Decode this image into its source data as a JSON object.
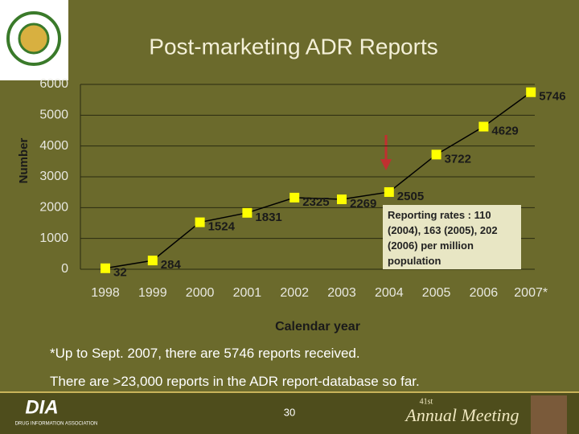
{
  "chart_data": {
    "type": "line",
    "title": "Post-marketing ADR Reports",
    "categories": [
      "1998",
      "1999",
      "2000",
      "2001",
      "2002",
      "2003",
      "2004",
      "2005",
      "2006",
      "2007*"
    ],
    "values": [
      32,
      284,
      1524,
      1831,
      2325,
      2269,
      2505,
      3722,
      4629,
      5746
    ],
    "line_color": "#000000",
    "marker_color": "#ffff00",
    "ylim": [
      0,
      6000
    ],
    "yticks": [
      0,
      1000,
      2000,
      3000,
      4000,
      5000,
      6000
    ],
    "grid": true,
    "xlabel": "Calendar year",
    "ylabel": "Number",
    "annotation": "Reporting rates : 110 (2004), 163 (2005), 202 (2006) per million population"
  },
  "footnotes": [
    "*Up to Sept. 2007, there are 5746 reports received.",
    "There are >23,000 reports in the ADR report-database so far."
  ],
  "footer": {
    "logo_text": "DIA",
    "logo_subtext": "DRUG INFORMATION ASSOCIATION",
    "page_number": "30",
    "meeting_edition": "41st",
    "meeting_name": "Annual Meeting"
  }
}
